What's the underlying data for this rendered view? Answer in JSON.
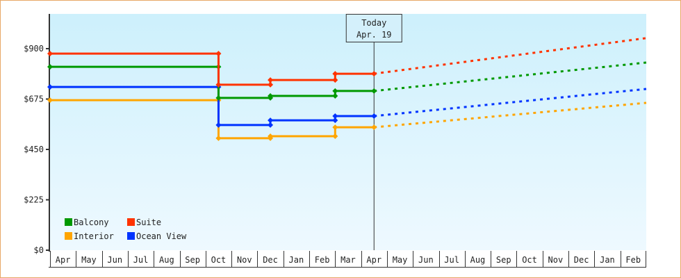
{
  "chart_data": {
    "type": "line",
    "title": "",
    "xlabel": "",
    "ylabel": "",
    "ylim": [
      0,
      1050
    ],
    "yticks": [
      0,
      225,
      450,
      675,
      900
    ],
    "ytick_labels": [
      "$0",
      "$225",
      "$450",
      "$675",
      "$900"
    ],
    "categories": [
      "Apr",
      "May",
      "Jun",
      "Jul",
      "Aug",
      "Sep",
      "Oct",
      "Nov",
      "Dec",
      "Jan",
      "Feb",
      "Mar",
      "Apr",
      "May",
      "Jun",
      "Jul",
      "Aug",
      "Sep",
      "Oct",
      "Nov",
      "Dec",
      "Jan",
      "Feb"
    ],
    "today_marker": {
      "label_line1": "Today",
      "label_line2": "Apr. 19",
      "category_index": 12
    },
    "legend_position": "bottom-left inside",
    "series": [
      {
        "name": "Balcony",
        "color": "#009900",
        "history": [
          [
            0,
            819
          ],
          [
            6.5,
            819
          ],
          [
            6.5,
            680
          ],
          [
            8.5,
            680
          ],
          [
            8.5,
            689
          ],
          [
            11,
            689
          ],
          [
            11,
            711
          ],
          [
            12.5,
            711
          ]
        ],
        "forecast": [
          [
            12.5,
            711
          ],
          [
            23,
            838
          ]
        ]
      },
      {
        "name": "Suite",
        "color": "#ff3300",
        "history": [
          [
            0,
            878
          ],
          [
            6.5,
            878
          ],
          [
            6.5,
            739
          ],
          [
            8.5,
            739
          ],
          [
            8.5,
            760
          ],
          [
            11,
            760
          ],
          [
            11,
            788
          ],
          [
            12.5,
            788
          ]
        ],
        "forecast": [
          [
            12.5,
            788
          ],
          [
            23,
            947
          ]
        ]
      },
      {
        "name": "Interior",
        "color": "#ffa500",
        "history": [
          [
            0,
            670
          ],
          [
            6.5,
            670
          ],
          [
            6.5,
            500
          ],
          [
            8.5,
            500
          ],
          [
            8.5,
            509
          ],
          [
            11,
            509
          ],
          [
            11,
            549
          ],
          [
            12.5,
            549
          ]
        ],
        "forecast": [
          [
            12.5,
            549
          ],
          [
            23,
            658
          ]
        ]
      },
      {
        "name": "Ocean View",
        "color": "#0033ff",
        "history": [
          [
            0,
            729
          ],
          [
            6.5,
            729
          ],
          [
            6.5,
            559
          ],
          [
            8.5,
            559
          ],
          [
            8.5,
            580
          ],
          [
            11,
            580
          ],
          [
            11,
            599
          ],
          [
            12.5,
            599
          ]
        ],
        "forecast": [
          [
            12.5,
            599
          ],
          [
            23,
            720
          ]
        ]
      }
    ]
  },
  "legend": [
    {
      "label": "Balcony",
      "color": "#009900"
    },
    {
      "label": "Suite",
      "color": "#ff3300"
    },
    {
      "label": "Interior",
      "color": "#ffa500"
    },
    {
      "label": "Ocean View",
      "color": "#0033ff"
    }
  ],
  "today": {
    "line1": "Today",
    "line2": "Apr. 19"
  }
}
